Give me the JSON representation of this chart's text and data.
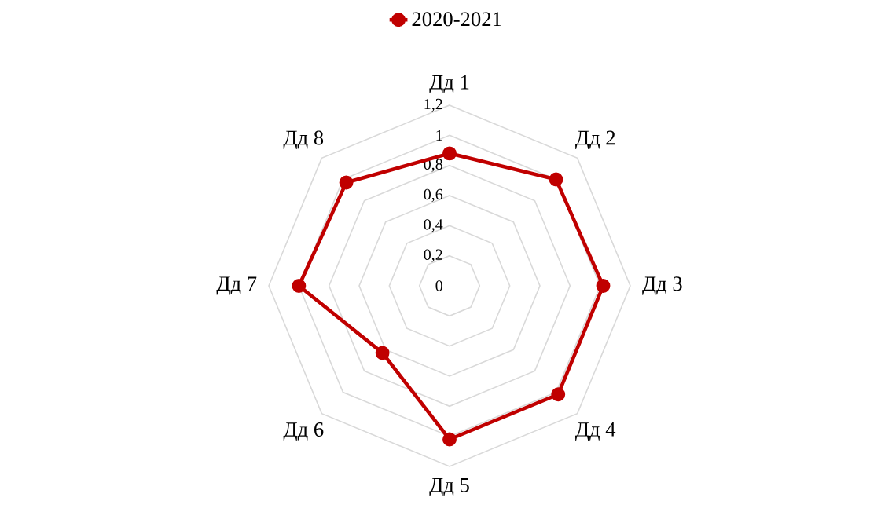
{
  "chart_data": {
    "type": "radar",
    "categories": [
      "Дд 1",
      "Дд 2",
      "Дд 3",
      "Дд 4",
      "Дд 5",
      "Дд 6",
      "Дд 7",
      "Дд 8"
    ],
    "series": [
      {
        "name": "2020-2021",
        "color": "#c00000",
        "values": [
          0.88,
          1.0,
          1.02,
          1.02,
          1.02,
          0.63,
          1.0,
          0.97
        ]
      }
    ],
    "ylim": [
      0,
      1.2
    ],
    "yticks": [
      {
        "value": 0,
        "label": "0"
      },
      {
        "value": 0.2,
        "label": "0,2"
      },
      {
        "value": 0.4,
        "label": "0,4"
      },
      {
        "value": 0.6,
        "label": "0,6"
      },
      {
        "value": 0.8,
        "label": "0,8"
      },
      {
        "value": 1,
        "label": "1"
      },
      {
        "value": 1.2,
        "label": "1,2"
      }
    ],
    "grid": true,
    "legend": "top",
    "marker": "circle"
  }
}
